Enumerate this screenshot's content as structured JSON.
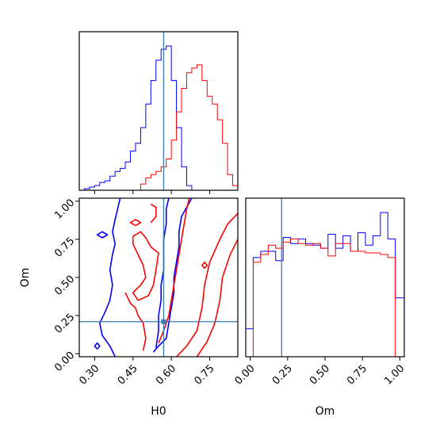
{
  "chart_data": [
    {
      "panel": "H0 marginal",
      "type": "histogram",
      "xlim": [
        0.24,
        0.86
      ],
      "truth": 0.57,
      "bin_edges": [
        0.24,
        0.26,
        0.28,
        0.3,
        0.32,
        0.34,
        0.36,
        0.38,
        0.4,
        0.42,
        0.44,
        0.46,
        0.48,
        0.5,
        0.52,
        0.54,
        0.56,
        0.58,
        0.6,
        0.62,
        0.64,
        0.66,
        0.68,
        0.7,
        0.72,
        0.74,
        0.76,
        0.78,
        0.8,
        0.82,
        0.84,
        0.86
      ],
      "series": [
        {
          "color": "#0000ff",
          "counts": [
            0,
            1,
            2,
            3,
            5,
            6,
            9,
            12,
            14,
            18,
            25,
            30,
            40,
            55,
            70,
            83,
            90,
            92,
            70,
            40,
            15,
            3,
            0,
            0,
            0,
            0,
            0,
            0,
            0,
            0,
            0
          ]
        },
        {
          "color": "#ff0000",
          "counts": [
            0,
            0,
            0,
            0,
            0,
            0,
            0,
            0,
            0,
            0,
            0,
            0,
            4,
            8,
            10,
            12,
            15,
            20,
            32,
            50,
            65,
            75,
            78,
            80,
            70,
            60,
            55,
            45,
            30,
            10,
            3
          ]
        }
      ]
    },
    {
      "panel": "H0 vs Om",
      "type": "contour",
      "xlabel": "H0",
      "ylabel": "Om",
      "xlim": [
        0.24,
        0.86
      ],
      "ylim": [
        -0.02,
        1.02
      ],
      "xticks": [
        "0.30",
        "0.45",
        "0.60",
        "0.75"
      ],
      "yticks": [
        "0.00",
        "0.25",
        "0.50",
        "0.75",
        "1.00"
      ],
      "truth": [
        0.57,
        0.21
      ],
      "series": [
        {
          "color": "#0000ff",
          "levels": [
            [
              [
                0.38,
                -0.02
              ],
              [
                0.36,
                0.05
              ],
              [
                0.33,
                0.12
              ],
              [
                0.32,
                0.2
              ],
              [
                0.34,
                0.27
              ],
              [
                0.36,
                0.35
              ],
              [
                0.37,
                0.45
              ],
              [
                0.36,
                0.55
              ],
              [
                0.37,
                0.65
              ],
              [
                0.38,
                0.72
              ],
              [
                0.37,
                0.8
              ],
              [
                0.38,
                0.88
              ],
              [
                0.39,
                0.95
              ],
              [
                0.4,
                1.02
              ]
            ],
            [
              [
                0.53,
                0.01
              ],
              [
                0.55,
                0.05
              ],
              [
                0.58,
                0.1
              ],
              [
                0.59,
                0.2
              ],
              [
                0.6,
                0.3
              ],
              [
                0.61,
                0.4
              ],
              [
                0.61,
                0.5
              ],
              [
                0.62,
                0.6
              ],
              [
                0.63,
                0.7
              ],
              [
                0.63,
                0.8
              ],
              [
                0.64,
                0.9
              ],
              [
                0.66,
                0.96
              ],
              [
                0.68,
                1.02
              ]
            ],
            [
              [
                0.54,
                0.04
              ],
              [
                0.55,
                0.15
              ],
              [
                0.55,
                0.25
              ],
              [
                0.56,
                0.35
              ],
              [
                0.56,
                0.45
              ],
              [
                0.57,
                0.55
              ],
              [
                0.57,
                0.65
              ],
              [
                0.57,
                0.75
              ],
              [
                0.58,
                0.85
              ],
              [
                0.58,
                0.95
              ],
              [
                0.59,
                1.02
              ]
            ],
            [
              [
                0.33,
                0.76
              ],
              [
                0.35,
                0.78
              ],
              [
                0.33,
                0.8
              ],
              [
                0.31,
                0.78
              ],
              [
                0.33,
                0.76
              ]
            ],
            [
              [
                0.31,
                0.03
              ],
              [
                0.32,
                0.05
              ],
              [
                0.31,
                0.07
              ],
              [
                0.3,
                0.05
              ],
              [
                0.31,
                0.03
              ]
            ]
          ]
        },
        {
          "color": "#ff0000",
          "levels": [
            [
              [
                0.55,
                0.07
              ],
              [
                0.57,
                0.15
              ],
              [
                0.59,
                0.25
              ],
              [
                0.6,
                0.35
              ],
              [
                0.61,
                0.45
              ],
              [
                0.62,
                0.55
              ],
              [
                0.63,
                0.65
              ],
              [
                0.64,
                0.75
              ],
              [
                0.65,
                0.85
              ],
              [
                0.66,
                0.95
              ],
              [
                0.67,
                1.02
              ]
            ],
            [
              [
                0.62,
                -0.02
              ],
              [
                0.66,
                0.05
              ],
              [
                0.7,
                0.15
              ],
              [
                0.72,
                0.3
              ],
              [
                0.73,
                0.45
              ],
              [
                0.75,
                0.6
              ],
              [
                0.79,
                0.75
              ],
              [
                0.82,
                0.85
              ],
              [
                0.86,
                0.92
              ]
            ],
            [
              [
                0.7,
                -0.02
              ],
              [
                0.74,
                0.08
              ],
              [
                0.77,
                0.2
              ],
              [
                0.79,
                0.35
              ],
              [
                0.8,
                0.5
              ],
              [
                0.83,
                0.65
              ],
              [
                0.86,
                0.75
              ]
            ],
            [
              [
                0.45,
                0.77
              ],
              [
                0.48,
                0.8
              ],
              [
                0.5,
                0.76
              ],
              [
                0.52,
                0.7
              ],
              [
                0.55,
                0.66
              ],
              [
                0.54,
                0.55
              ],
              [
                0.53,
                0.45
              ],
              [
                0.51,
                0.38
              ],
              [
                0.47,
                0.35
              ],
              [
                0.45,
                0.4
              ],
              [
                0.48,
                0.45
              ],
              [
                0.5,
                0.5
              ],
              [
                0.49,
                0.58
              ],
              [
                0.47,
                0.65
              ],
              [
                0.45,
                0.72
              ],
              [
                0.45,
                0.77
              ]
            ],
            [
              [
                0.42,
                0.4
              ],
              [
                0.44,
                0.33
              ],
              [
                0.46,
                0.3
              ],
              [
                0.47,
                0.25
              ],
              [
                0.49,
                0.2
              ],
              [
                0.5,
                0.1
              ],
              [
                0.49,
                0.02
              ]
            ],
            [
              [
                0.52,
                0.86
              ],
              [
                0.54,
                0.9
              ],
              [
                0.54,
                0.96
              ],
              [
                0.52,
                0.98
              ]
            ],
            [
              [
                0.46,
                0.84
              ],
              [
                0.48,
                0.86
              ],
              [
                0.46,
                0.88
              ],
              [
                0.44,
                0.86
              ],
              [
                0.46,
                0.84
              ]
            ],
            [
              [
                0.73,
                0.56
              ],
              [
                0.74,
                0.58
              ],
              [
                0.73,
                0.6
              ],
              [
                0.72,
                0.58
              ],
              [
                0.73,
                0.56
              ]
            ]
          ]
        }
      ]
    },
    {
      "panel": "Om marginal",
      "type": "histogram",
      "xlabel": "Om",
      "xlim": [
        -0.03,
        1.03
      ],
      "xticks": [
        "0.00",
        "0.25",
        "0.50",
        "0.75",
        "1.00"
      ],
      "truth": 0.21,
      "bin_edges": [
        -0.03,
        0.02,
        0.07,
        0.12,
        0.17,
        0.22,
        0.27,
        0.32,
        0.37,
        0.42,
        0.47,
        0.52,
        0.57,
        0.62,
        0.67,
        0.72,
        0.77,
        0.82,
        0.87,
        0.92,
        0.97,
        1.03
      ],
      "series": [
        {
          "color": "#0000ff",
          "counts": [
            0.18,
            0.64,
            0.68,
            0.68,
            0.62,
            0.77,
            0.73,
            0.76,
            0.73,
            0.72,
            0.7,
            0.79,
            0.7,
            0.78,
            0.68,
            0.8,
            0.72,
            0.78,
            0.93,
            0.76,
            0.38
          ]
        },
        {
          "color": "#ff0000",
          "counts": [
            0.0,
            0.61,
            0.66,
            0.72,
            0.7,
            0.74,
            0.76,
            0.73,
            0.72,
            0.73,
            0.7,
            0.65,
            0.73,
            0.73,
            0.68,
            0.68,
            0.67,
            0.67,
            0.66,
            0.64,
            0.0
          ]
        }
      ]
    }
  ]
}
